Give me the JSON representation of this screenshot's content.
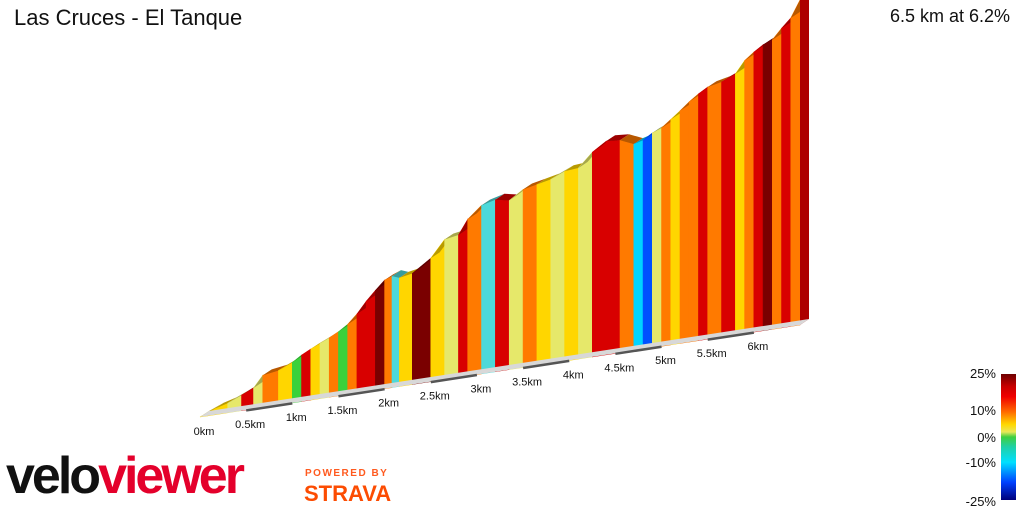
{
  "header": {
    "title": "Las Cruces - El Tanque",
    "stats": "6.5 km at 6.2%"
  },
  "legend": {
    "labels": [
      "25%",
      "10%",
      "0%",
      "-10%",
      "-25%"
    ]
  },
  "branding": {
    "logo_part1": "velo",
    "logo_part2": "viewer",
    "powered_by": "POWERED BY",
    "strava": "STRAVA"
  },
  "chart_data": {
    "type": "area",
    "title": "Las Cruces - El Tanque",
    "xlabel": "",
    "ylabel": "",
    "x_unit": "km",
    "xlim": [
      0,
      6.5
    ],
    "x_ticks": [
      "0km",
      "0.5km",
      "1km",
      "1.5km",
      "2km",
      "2.5km",
      "3km",
      "3.5km",
      "4km",
      "4.5km",
      "5km",
      "5.5km",
      "6km"
    ],
    "distance_km": [
      0,
      0.08,
      0.16,
      0.3,
      0.45,
      0.58,
      0.68,
      0.85,
      1.0,
      1.1,
      1.2,
      1.3,
      1.4,
      1.5,
      1.6,
      1.7,
      1.8,
      1.9,
      2.0,
      2.08,
      2.16,
      2.3,
      2.5,
      2.65,
      2.8,
      2.9,
      3.05,
      3.2,
      3.35,
      3.5,
      3.65,
      3.8,
      3.95,
      4.1,
      4.25,
      4.4,
      4.55,
      4.7,
      4.8,
      4.9,
      5.0,
      5.1,
      5.2,
      5.3,
      5.4,
      5.5,
      5.65,
      5.8,
      5.9,
      6.0,
      6.1,
      6.2,
      6.3,
      6.4,
      6.5
    ],
    "elevation_rel": [
      0,
      5,
      10,
      16,
      26,
      35,
      54,
      58,
      68,
      78,
      86,
      93,
      100,
      108,
      118,
      133,
      152,
      168,
      183,
      188,
      183,
      187,
      208,
      236,
      240,
      264,
      284,
      290,
      285,
      300,
      305,
      310,
      320,
      322,
      345,
      360,
      358,
      348,
      352,
      362,
      368,
      380,
      392,
      405,
      416,
      425,
      430,
      440,
      460,
      472,
      482,
      488,
      505,
      520,
      548
    ],
    "elevation_unit": "relative",
    "gradient_pct": [
      8,
      9,
      6,
      2,
      18,
      5,
      12,
      7,
      1,
      20,
      9,
      4,
      13,
      0,
      10,
      16,
      19,
      22,
      12,
      -3,
      8,
      24,
      6,
      3,
      21,
      10,
      -6,
      18,
      4,
      14,
      6,
      3,
      7,
      4,
      19,
      20,
      11,
      -8,
      -14,
      4,
      15,
      9,
      12,
      10,
      16,
      14,
      19,
      8,
      14,
      17,
      22,
      12,
      16,
      10,
      18
    ],
    "legend": {
      "type": "gradient",
      "min": -25,
      "max": 25,
      "labels": [
        "25%",
        "10%",
        "0%",
        "-10%",
        "-25%"
      ],
      "placement": "right"
    },
    "colors": {
      "g_max": "#7a0000",
      "g_20": "#d80000",
      "g_12": "#ff7a00",
      "g_7": "#ffd600",
      "g_3": "#e6e86a",
      "g_0": "#3bd13b",
      "g_minus_5": "#4dd9d9",
      "g_minus_10": "#00d4ff",
      "g_minus_20": "#0050ff",
      "g_min": "#000080"
    }
  }
}
